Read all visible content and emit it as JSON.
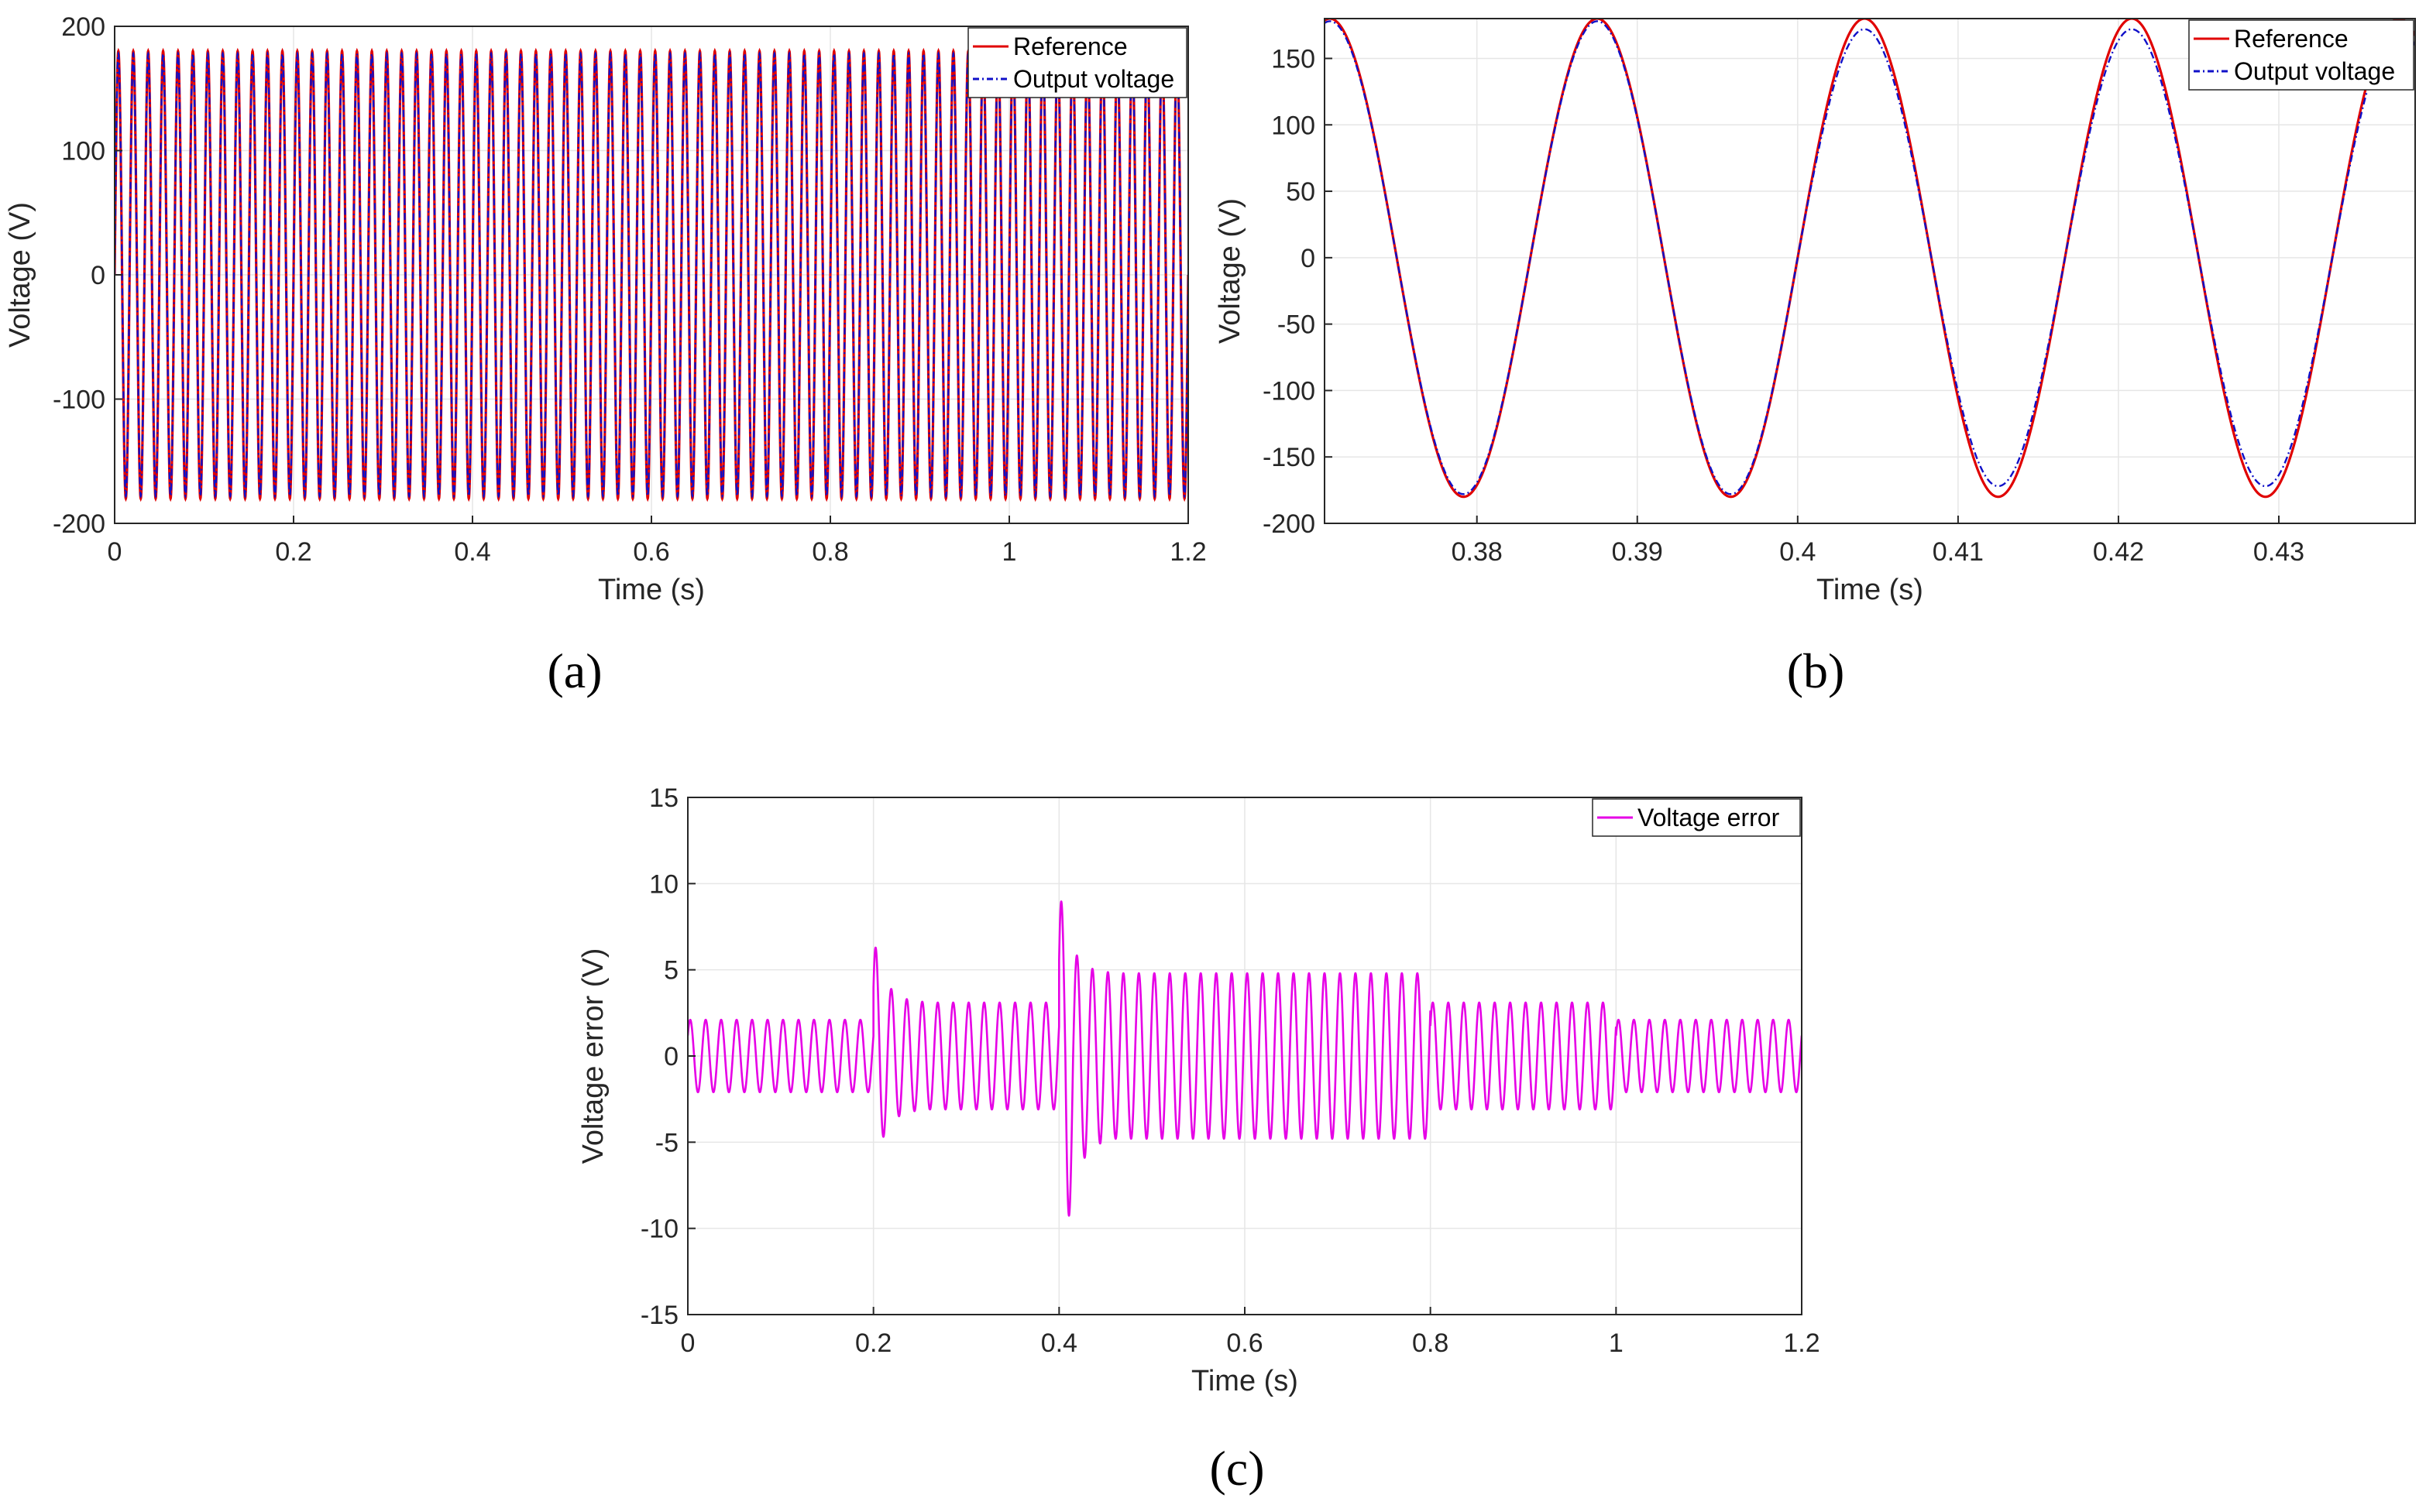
{
  "chart_data": [
    {
      "type": "line",
      "panel": "(a)",
      "xlabel": "Time (s)",
      "ylabel": "Voltage (V)",
      "xlim": [
        0,
        1.2
      ],
      "ylim": [
        -200,
        200
      ],
      "xticks": [
        0,
        0.2,
        0.4,
        0.6,
        0.8,
        1,
        1.2
      ],
      "xtick_labels": [
        "0",
        "0.2",
        "0.4",
        "0.6",
        "0.8",
        "1",
        "1.2"
      ],
      "yticks": [
        200,
        100,
        0,
        -100,
        -200
      ],
      "ytick_labels": [
        "200",
        "100",
        "0",
        "-100",
        "-200"
      ],
      "grid": true,
      "legend_position": "top-right",
      "series": [
        {
          "name": "Reference",
          "color": "#e00000",
          "style": "solid",
          "frequency_hz": 60,
          "amplitude_v": 180
        },
        {
          "name": "Output voltage",
          "color": "#1010c8",
          "style": "dash-dot",
          "frequency_hz": 60,
          "amplitude_v": 178
        }
      ]
    },
    {
      "type": "line",
      "panel": "(b)",
      "xlabel": "Time (s)",
      "ylabel": "Voltage (V)",
      "xlim": [
        0.3705,
        0.4385
      ],
      "ylim": [
        -200,
        180
      ],
      "xticks": [
        0.38,
        0.39,
        0.4,
        0.41,
        0.42,
        0.43
      ],
      "xtick_labels": [
        "0.38",
        "0.39",
        "0.4",
        "0.41",
        "0.42",
        "0.43"
      ],
      "yticks": [
        150,
        100,
        50,
        0,
        -50,
        -100,
        -150,
        -200
      ],
      "ytick_labels": [
        "150",
        "100",
        "50",
        "0",
        "-50",
        "-100",
        "-150",
        "-200"
      ],
      "grid": true,
      "legend_position": "top-right",
      "series": [
        {
          "name": "Reference",
          "color": "#e00000",
          "style": "solid",
          "frequency_hz": 60,
          "amplitude_v": 180
        },
        {
          "name": "Output voltage",
          "color": "#1010c8",
          "style": "dash-dot",
          "frequency_hz": 60,
          "amplitude_v": [
            [
              0.3705,
              178
            ],
            [
              0.4,
              178
            ],
            [
              0.401,
              172
            ],
            [
              0.4385,
              172
            ]
          ]
        }
      ]
    },
    {
      "type": "line",
      "panel": "(c)",
      "xlabel": "Time (s)",
      "ylabel": "Voltage error (V)",
      "xlim": [
        0,
        1.2
      ],
      "ylim": [
        -15,
        15
      ],
      "xticks": [
        0,
        0.2,
        0.4,
        0.6,
        0.8,
        1,
        1.2
      ],
      "xtick_labels": [
        "0",
        "0.2",
        "0.4",
        "0.6",
        "0.8",
        "1",
        "1.2"
      ],
      "yticks": [
        15,
        10,
        5,
        0,
        -5,
        -10,
        -15
      ],
      "ytick_labels": [
        "15",
        "10",
        "5",
        "0",
        "-5",
        "-10",
        "-15"
      ],
      "grid": true,
      "legend_position": "top-right",
      "series": [
        {
          "name": "Voltage error",
          "color": "#e600e6",
          "style": "solid",
          "frequency_hz": 60,
          "segments": [
            {
              "t_start": 0.0,
              "t_end": 0.2,
              "amplitude_v": 2.1
            },
            {
              "t_start": 0.2,
              "t_end": 0.4,
              "amplitude_v": 3.1,
              "transient_peak_v": 7.0
            },
            {
              "t_start": 0.4,
              "t_end": 0.8,
              "amplitude_v": 4.8,
              "transient_peak_v": 9.9,
              "transient_trough_v": -7.8
            },
            {
              "t_start": 0.8,
              "t_end": 1.0,
              "amplitude_v": 3.1
            },
            {
              "t_start": 1.0,
              "t_end": 1.2,
              "amplitude_v": 2.1
            }
          ]
        }
      ]
    }
  ]
}
